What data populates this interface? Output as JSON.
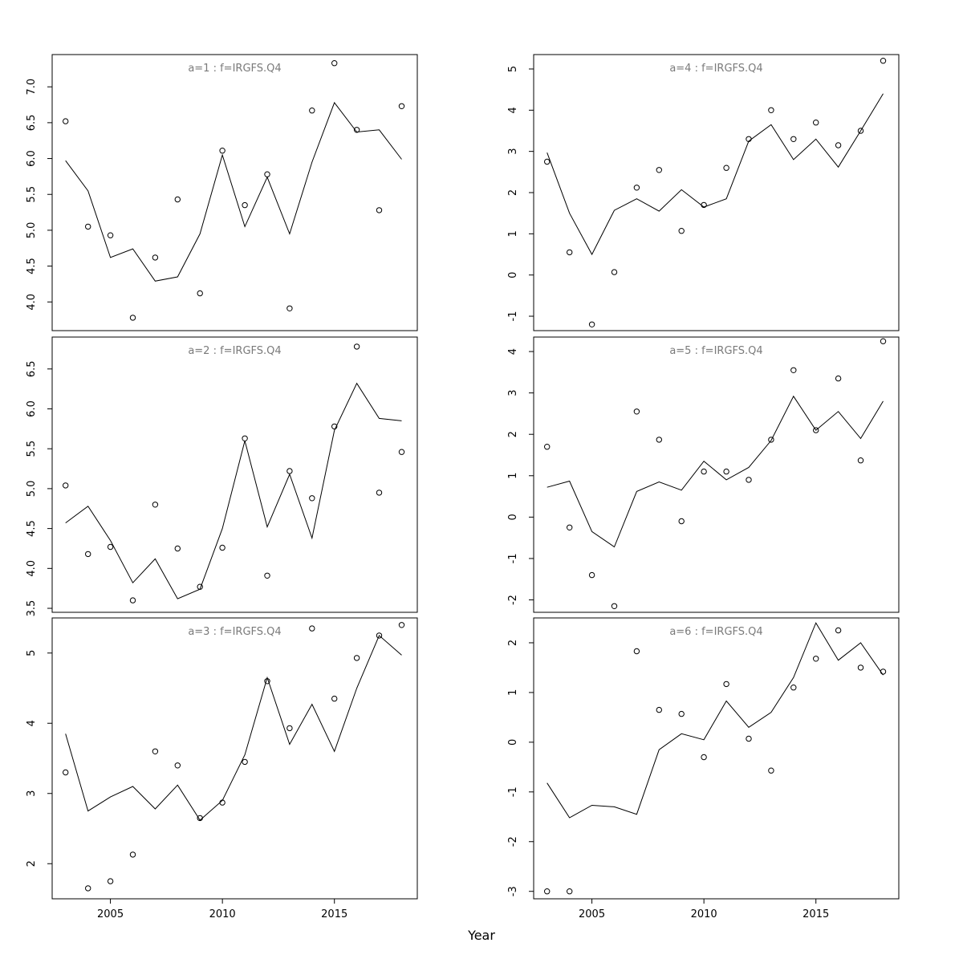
{
  "page": {
    "xlabel": "Year",
    "background": "#ffffff",
    "line_color": "#000000",
    "point_color": "#000000",
    "axis_color": "#000000",
    "title_color": "#7a7a7a"
  },
  "chart_data": [
    {
      "type": "line",
      "title": "a=1 : f=IRGFS.Q4",
      "x": [
        2003,
        2004,
        2005,
        2006,
        2007,
        2008,
        2009,
        2010,
        2011,
        2012,
        2013,
        2014,
        2015,
        2016,
        2017,
        2018
      ],
      "series": [
        {
          "name": "observed-points",
          "style": "open-circle-scatter",
          "values": [
            6.52,
            5.05,
            4.93,
            3.78,
            4.62,
            5.43,
            4.12,
            6.11,
            5.35,
            5.78,
            3.91,
            6.67,
            7.33,
            6.4,
            5.28,
            6.73
          ]
        },
        {
          "name": "fitted-line",
          "style": "solid-line",
          "values": [
            5.97,
            5.55,
            4.62,
            4.74,
            4.29,
            4.35,
            4.95,
            6.05,
            5.05,
            5.74,
            4.95,
            5.95,
            6.78,
            6.37,
            6.4,
            5.99
          ]
        }
      ],
      "xlim": [
        2002.4,
        2018.7
      ],
      "xticks": [
        2005,
        2010,
        2015
      ],
      "ylim": [
        3.6,
        7.45
      ],
      "yticks": [
        4.0,
        4.5,
        5.0,
        5.5,
        6.0,
        6.5,
        7.0
      ],
      "ytick_labels": [
        "4.0",
        "4.5",
        "5.0",
        "5.5",
        "6.0",
        "6.5",
        "7.0"
      ]
    },
    {
      "type": "line",
      "title": "a=2 : f=IRGFS.Q4",
      "x": [
        2003,
        2004,
        2005,
        2006,
        2007,
        2008,
        2009,
        2010,
        2011,
        2012,
        2013,
        2014,
        2015,
        2016,
        2017,
        2018
      ],
      "series": [
        {
          "name": "observed-points",
          "style": "open-circle-scatter",
          "values": [
            5.04,
            4.18,
            4.27,
            3.6,
            4.8,
            4.25,
            3.77,
            4.26,
            5.63,
            3.91,
            5.22,
            4.88,
            5.78,
            6.78,
            4.95,
            5.46
          ]
        },
        {
          "name": "fitted-line",
          "style": "solid-line",
          "values": [
            4.57,
            4.78,
            4.35,
            3.82,
            4.12,
            3.62,
            3.74,
            4.5,
            5.6,
            4.52,
            5.18,
            4.38,
            5.73,
            6.32,
            5.88,
            5.85
          ]
        }
      ],
      "xlim": [
        2002.4,
        2018.7
      ],
      "xticks": [
        2005,
        2010,
        2015
      ],
      "ylim": [
        3.45,
        6.9
      ],
      "yticks": [
        3.5,
        4.0,
        4.5,
        5.0,
        5.5,
        6.0,
        6.5
      ],
      "ytick_labels": [
        "3.5",
        "4.0",
        "4.5",
        "5.0",
        "5.5",
        "6.0",
        "6.5"
      ]
    },
    {
      "type": "line",
      "title": "a=3 : f=IRGFS.Q4",
      "x": [
        2003,
        2004,
        2005,
        2006,
        2007,
        2008,
        2009,
        2010,
        2011,
        2012,
        2013,
        2014,
        2015,
        2016,
        2017,
        2018
      ],
      "series": [
        {
          "name": "observed-points",
          "style": "open-circle-scatter",
          "values": [
            3.3,
            1.65,
            1.75,
            2.13,
            3.6,
            3.4,
            2.65,
            2.87,
            3.45,
            4.6,
            3.93,
            5.35,
            4.35,
            4.93,
            5.25,
            5.4
          ]
        },
        {
          "name": "fitted-line",
          "style": "solid-line",
          "values": [
            3.85,
            2.75,
            2.95,
            3.1,
            2.78,
            3.12,
            2.62,
            2.9,
            3.55,
            4.65,
            3.7,
            4.27,
            3.6,
            4.5,
            5.25,
            4.97
          ]
        }
      ],
      "xlim": [
        2002.4,
        2018.7
      ],
      "xticks": [
        2005,
        2010,
        2015
      ],
      "ylim": [
        1.5,
        5.5
      ],
      "yticks": [
        2,
        3,
        4,
        5
      ],
      "ytick_labels": [
        "2",
        "3",
        "4",
        "5"
      ]
    },
    {
      "type": "line",
      "title": "a=4 : f=IRGFS.Q4",
      "x": [
        2003,
        2004,
        2005,
        2006,
        2007,
        2008,
        2009,
        2010,
        2011,
        2012,
        2013,
        2014,
        2015,
        2016,
        2017,
        2018
      ],
      "series": [
        {
          "name": "observed-points",
          "style": "open-circle-scatter",
          "values": [
            2.75,
            0.55,
            -1.2,
            0.07,
            2.12,
            2.55,
            1.07,
            1.7,
            2.6,
            3.3,
            4.0,
            3.3,
            3.7,
            3.15,
            3.5,
            5.2
          ]
        },
        {
          "name": "fitted-line",
          "style": "solid-line",
          "values": [
            2.97,
            1.5,
            0.5,
            1.57,
            1.85,
            1.55,
            2.07,
            1.65,
            1.85,
            3.25,
            3.65,
            2.8,
            3.3,
            2.62,
            3.5,
            4.4
          ]
        }
      ],
      "xlim": [
        2002.4,
        2018.7
      ],
      "xticks": [
        2005,
        2010,
        2015
      ],
      "ylim": [
        -1.35,
        5.35
      ],
      "yticks": [
        -1,
        0,
        1,
        2,
        3,
        4,
        5
      ],
      "ytick_labels": [
        "-1",
        "0",
        "1",
        "2",
        "3",
        "4",
        "5"
      ]
    },
    {
      "type": "line",
      "title": "a=5 : f=IRGFS.Q4",
      "x": [
        2003,
        2004,
        2005,
        2006,
        2007,
        2008,
        2009,
        2010,
        2011,
        2012,
        2013,
        2014,
        2015,
        2016,
        2017,
        2018
      ],
      "series": [
        {
          "name": "observed-points",
          "style": "open-circle-scatter",
          "values": [
            1.7,
            -0.25,
            -1.4,
            -2.15,
            2.55,
            1.87,
            -0.1,
            1.1,
            1.1,
            0.9,
            1.87,
            3.55,
            2.1,
            3.35,
            1.37,
            4.25
          ]
        },
        {
          "name": "fitted-line",
          "style": "solid-line",
          "values": [
            0.72,
            0.87,
            -0.35,
            -0.72,
            0.62,
            0.85,
            0.65,
            1.35,
            0.9,
            1.2,
            1.85,
            2.92,
            2.1,
            2.55,
            1.9,
            2.8
          ]
        }
      ],
      "xlim": [
        2002.4,
        2018.7
      ],
      "xticks": [
        2005,
        2010,
        2015
      ],
      "ylim": [
        -2.3,
        4.35
      ],
      "yticks": [
        -2,
        -1,
        0,
        1,
        2,
        3,
        4
      ],
      "ytick_labels": [
        "-2",
        "-1",
        "0",
        "1",
        "2",
        "3",
        "4"
      ]
    },
    {
      "type": "line",
      "title": "a=6 : f=IRGFS.Q4",
      "x": [
        2003,
        2004,
        2005,
        2006,
        2007,
        2008,
        2009,
        2010,
        2011,
        2012,
        2013,
        2014,
        2015,
        2016,
        2017,
        2018
      ],
      "series": [
        {
          "name": "observed-points",
          "style": "open-circle-scatter",
          "values": [
            -3.0,
            -3.0,
            null,
            null,
            1.83,
            0.65,
            0.57,
            -0.3,
            1.17,
            0.07,
            -0.57,
            1.1,
            1.68,
            2.25,
            1.5,
            1.42
          ]
        },
        {
          "name": "fitted-line",
          "style": "solid-line",
          "values": [
            -0.82,
            -1.52,
            -1.27,
            -1.3,
            -1.45,
            -0.15,
            0.17,
            0.05,
            0.83,
            0.3,
            0.6,
            1.3,
            2.4,
            1.65,
            2.0,
            1.35
          ]
        }
      ],
      "xlim": [
        2002.4,
        2018.7
      ],
      "xticks": [
        2005,
        2010,
        2015
      ],
      "ylim": [
        -3.15,
        2.5
      ],
      "yticks": [
        -3,
        -2,
        -1,
        0,
        1,
        2
      ],
      "ytick_labels": [
        "-3",
        "-2",
        "-1",
        "0",
        "1",
        "2"
      ]
    }
  ]
}
